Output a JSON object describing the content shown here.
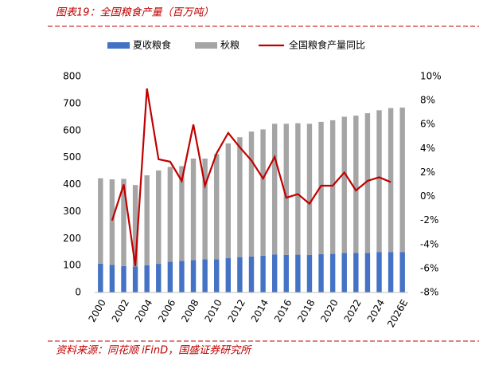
{
  "chart_data": {
    "type": "bar_line",
    "title": "图表19：全国粮食产量（百万吨）",
    "source": "资料来源：同花顺 iFinD，国盛证券研究所",
    "categories": [
      "2000",
      null,
      "2002",
      null,
      "2004",
      null,
      "2006",
      null,
      "2008",
      null,
      "2010",
      null,
      "2012",
      null,
      "2014",
      null,
      "2016",
      null,
      "2018",
      null,
      "2020",
      null,
      "2022",
      null,
      "2024",
      null,
      "2026E"
    ],
    "series": [
      {
        "name": "夏收粮食",
        "color": "#4472c4",
        "stack": true,
        "values": [
          107,
          102,
          98,
          96,
          101,
          106,
          114,
          117,
          120,
          123,
          123,
          127,
          131,
          133,
          136,
          141,
          139,
          140,
          139,
          142,
          143,
          146,
          147,
          146,
          150,
          150,
          150
        ]
      },
      {
        "name": "秋粮",
        "color": "#a5a5a5",
        "stack": true,
        "values": [
          316,
          317,
          323,
          302,
          333,
          346,
          351,
          351,
          376,
          373,
          390,
          425,
          444,
          463,
          468,
          484,
          486,
          487,
          486,
          490,
          495,
          505,
          508,
          518,
          525,
          533,
          535
        ]
      },
      {
        "name": "全国粮食产量同比",
        "color": "#c00000",
        "axis": "y2",
        "values": [
          null,
          -2.0,
          1.0,
          -5.8,
          9.0,
          3.1,
          2.9,
          1.3,
          6.0,
          0.9,
          3.6,
          5.3,
          4.1,
          3.0,
          1.5,
          3.3,
          -0.1,
          0.2,
          -0.6,
          0.9,
          0.9,
          2.0,
          0.5,
          1.3,
          1.6,
          1.2,
          null
        ]
      }
    ],
    "ylim": [
      0,
      800
    ],
    "yticks": [
      0,
      100,
      200,
      300,
      400,
      500,
      600,
      700,
      800
    ],
    "y2lim": [
      -8,
      10
    ],
    "y2ticks": [
      {
        "value": -8,
        "label": "-8%"
      },
      {
        "value": -6,
        "label": "-6%"
      },
      {
        "value": -4,
        "label": "-4%"
      },
      {
        "value": -2,
        "label": "-2%"
      },
      {
        "value": 0,
        "label": "0%"
      },
      {
        "value": 2,
        "label": "2%"
      },
      {
        "value": 4,
        "label": "4%"
      },
      {
        "value": 6,
        "label": "6%"
      },
      {
        "value": 8,
        "label": "8%"
      },
      {
        "value": 10,
        "label": "10%"
      }
    ]
  }
}
